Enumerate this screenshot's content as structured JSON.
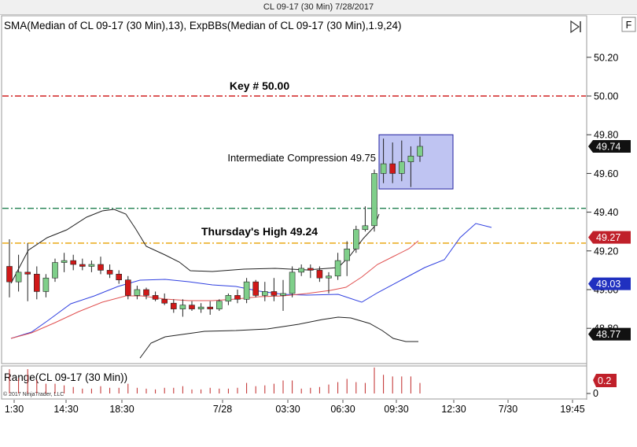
{
  "window": {
    "title": "CL 09-17 (30 Min)  7/28/2017"
  },
  "indicator_title": "SMA(Median of CL 09-17 (30 Min),13), ExpBBs(Median of CL 09-17 (30 Min),1.9,24)",
  "range_title": "Range(CL 09-17 (30 Min))",
  "copyright": "© 2017 NinjaTrader, LLC",
  "toolbar": {
    "icon": "play-bar-icon",
    "f_button": "F"
  },
  "colors": {
    "up": "#7fcf8a",
    "down": "#d01818",
    "sma": "#e05050",
    "bb_mid": "#3040e0",
    "bb_band": "#202020",
    "key_line": "#d02020",
    "mid_line": "#208050",
    "thursday_line": "#e8a000",
    "box_fill": "#aab0ee"
  },
  "chart_data": {
    "type": "candlestick",
    "title": "SMA(Median of CL 09-17 (30 Min),13), ExpBBs(Median of CL 09-17 (30 Min),1.9,24)",
    "ylim": [
      48.7,
      50.3
    ],
    "y_ticks": [
      "50.20",
      "50.00",
      "49.80",
      "49.60",
      "49.40",
      "49.20",
      "49.00",
      "48.80"
    ],
    "x_ticks": [
      "1:30",
      "14:30",
      "18:30",
      "7/28",
      "03:30",
      "06:30",
      "09:30",
      "12:30",
      "7/30",
      "19:45"
    ],
    "horizontal_lines": [
      {
        "label": "Key # 50.00",
        "value": 50.0
      },
      {
        "label": "",
        "value": 49.42
      },
      {
        "label": "Thursday's High 49.24",
        "value": 49.24
      }
    ],
    "compression_box": {
      "label": "Intermediate Compression 49.75",
      "y_low": 49.52,
      "y_high": 49.8
    },
    "price_tags": [
      {
        "value": "49.74",
        "color": "#111111"
      },
      {
        "value": "49.27",
        "color": "#c0202a"
      },
      {
        "value": "49.03",
        "color": "#2030c0"
      },
      {
        "value": "48.77",
        "color": "#111111"
      }
    ],
    "candles": [
      {
        "o": 49.12,
        "h": 49.26,
        "l": 48.96,
        "c": 49.04
      },
      {
        "o": 49.04,
        "h": 49.18,
        "l": 48.99,
        "c": 49.09
      },
      {
        "o": 49.09,
        "h": 49.24,
        "l": 48.94,
        "c": 49.08
      },
      {
        "o": 49.08,
        "h": 49.12,
        "l": 48.95,
        "c": 48.99
      },
      {
        "o": 48.99,
        "h": 49.08,
        "l": 48.96,
        "c": 49.06
      },
      {
        "o": 49.06,
        "h": 49.16,
        "l": 49.04,
        "c": 49.14
      },
      {
        "o": 49.14,
        "h": 49.19,
        "l": 49.09,
        "c": 49.15
      },
      {
        "o": 49.15,
        "h": 49.18,
        "l": 49.1,
        "c": 49.13
      },
      {
        "o": 49.13,
        "h": 49.16,
        "l": 49.1,
        "c": 49.12
      },
      {
        "o": 49.12,
        "h": 49.15,
        "l": 49.09,
        "c": 49.13
      },
      {
        "o": 49.13,
        "h": 49.17,
        "l": 49.08,
        "c": 49.1
      },
      {
        "o": 49.1,
        "h": 49.13,
        "l": 49.06,
        "c": 49.08
      },
      {
        "o": 49.08,
        "h": 49.1,
        "l": 49.03,
        "c": 49.05
      },
      {
        "o": 49.05,
        "h": 49.07,
        "l": 48.95,
        "c": 48.97
      },
      {
        "o": 48.97,
        "h": 49.02,
        "l": 48.95,
        "c": 49.0
      },
      {
        "o": 49.0,
        "h": 49.01,
        "l": 48.95,
        "c": 48.97
      },
      {
        "o": 48.97,
        "h": 48.99,
        "l": 48.94,
        "c": 48.95
      },
      {
        "o": 48.95,
        "h": 48.98,
        "l": 48.92,
        "c": 48.93
      },
      {
        "o": 48.93,
        "h": 48.95,
        "l": 48.88,
        "c": 48.9
      },
      {
        "o": 48.9,
        "h": 48.95,
        "l": 48.86,
        "c": 48.92
      },
      {
        "o": 48.92,
        "h": 48.94,
        "l": 48.89,
        "c": 48.9
      },
      {
        "o": 48.9,
        "h": 48.93,
        "l": 48.88,
        "c": 48.91
      },
      {
        "o": 48.91,
        "h": 48.94,
        "l": 48.87,
        "c": 48.9
      },
      {
        "o": 48.9,
        "h": 48.95,
        "l": 48.89,
        "c": 48.94
      },
      {
        "o": 48.94,
        "h": 48.98,
        "l": 48.92,
        "c": 48.97
      },
      {
        "o": 48.97,
        "h": 49.0,
        "l": 48.93,
        "c": 48.95
      },
      {
        "o": 48.95,
        "h": 49.06,
        "l": 48.93,
        "c": 49.04
      },
      {
        "o": 49.04,
        "h": 49.05,
        "l": 48.96,
        "c": 48.97
      },
      {
        "o": 48.97,
        "h": 49.04,
        "l": 48.94,
        "c": 48.99
      },
      {
        "o": 48.99,
        "h": 49.06,
        "l": 48.94,
        "c": 48.97
      },
      {
        "o": 48.97,
        "h": 49.05,
        "l": 48.89,
        "c": 48.98
      },
      {
        "o": 48.98,
        "h": 49.12,
        "l": 48.96,
        "c": 49.09
      },
      {
        "o": 49.09,
        "h": 49.13,
        "l": 49.07,
        "c": 49.11
      },
      {
        "o": 49.11,
        "h": 49.13,
        "l": 49.06,
        "c": 49.1
      },
      {
        "o": 49.1,
        "h": 49.12,
        "l": 49.04,
        "c": 49.06
      },
      {
        "o": 49.06,
        "h": 49.09,
        "l": 48.98,
        "c": 49.07
      },
      {
        "o": 49.07,
        "h": 49.19,
        "l": 49.05,
        "c": 49.15
      },
      {
        "o": 49.15,
        "h": 49.25,
        "l": 49.07,
        "c": 49.21
      },
      {
        "o": 49.21,
        "h": 49.33,
        "l": 49.19,
        "c": 49.31
      },
      {
        "o": 49.31,
        "h": 49.43,
        "l": 49.3,
        "c": 49.33
      },
      {
        "o": 49.33,
        "h": 49.62,
        "l": 49.3,
        "c": 49.6
      },
      {
        "o": 49.6,
        "h": 49.78,
        "l": 49.55,
        "c": 49.65
      },
      {
        "o": 49.65,
        "h": 49.76,
        "l": 49.55,
        "c": 49.6
      },
      {
        "o": 49.6,
        "h": 49.77,
        "l": 49.56,
        "c": 49.66
      },
      {
        "o": 49.66,
        "h": 49.74,
        "l": 49.53,
        "c": 49.69
      },
      {
        "o": 49.69,
        "h": 49.79,
        "l": 49.66,
        "c": 49.74
      }
    ],
    "ranges": [
      0.3,
      0.19,
      0.3,
      0.17,
      0.12,
      0.12,
      0.1,
      0.08,
      0.06,
      0.06,
      0.09,
      0.07,
      0.07,
      0.12,
      0.07,
      0.06,
      0.05,
      0.07,
      0.07,
      0.09,
      0.05,
      0.05,
      0.07,
      0.06,
      0.06,
      0.07,
      0.13,
      0.09,
      0.1,
      0.12,
      0.16,
      0.16,
      0.06,
      0.07,
      0.08,
      0.11,
      0.14,
      0.18,
      0.14,
      0.13,
      0.32,
      0.23,
      0.21,
      0.21,
      0.21,
      0.13
    ],
    "range_value": "0.2",
    "range_zero": "0"
  }
}
